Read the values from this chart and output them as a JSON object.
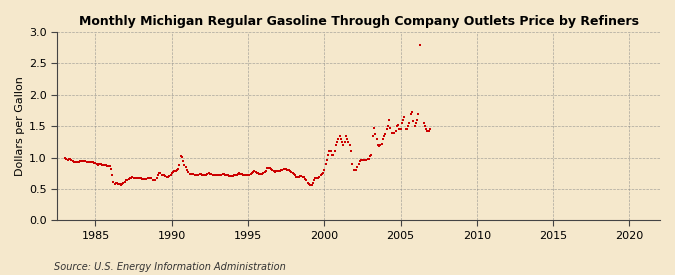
{
  "title": "Monthly Michigan Regular Gasoline Through Company Outlets Price by Refiners",
  "ylabel": "Dollars per Gallon",
  "source": "Source: U.S. Energy Information Administration",
  "background_color": "#f5e8cc",
  "marker_color": "#cc0000",
  "xlim": [
    1982.5,
    2022
  ],
  "ylim": [
    0.0,
    3.0
  ],
  "xticks": [
    1985,
    1990,
    1995,
    2000,
    2005,
    2010,
    2015,
    2020
  ],
  "yticks": [
    0.0,
    0.5,
    1.0,
    1.5,
    2.0,
    2.5,
    3.0
  ],
  "data": [
    [
      1983.0,
      0.995
    ],
    [
      1983.08,
      0.975
    ],
    [
      1983.17,
      0.965
    ],
    [
      1983.25,
      0.97
    ],
    [
      1983.33,
      0.975
    ],
    [
      1983.42,
      0.96
    ],
    [
      1983.5,
      0.945
    ],
    [
      1983.58,
      0.935
    ],
    [
      1983.67,
      0.93
    ],
    [
      1983.75,
      0.925
    ],
    [
      1983.83,
      0.928
    ],
    [
      1983.92,
      0.932
    ],
    [
      1984.0,
      0.942
    ],
    [
      1984.08,
      0.942
    ],
    [
      1984.17,
      0.942
    ],
    [
      1984.25,
      0.938
    ],
    [
      1984.33,
      0.938
    ],
    [
      1984.42,
      0.932
    ],
    [
      1984.5,
      0.928
    ],
    [
      1984.58,
      0.928
    ],
    [
      1984.67,
      0.922
    ],
    [
      1984.75,
      0.922
    ],
    [
      1984.83,
      0.922
    ],
    [
      1984.92,
      0.918
    ],
    [
      1985.0,
      0.908
    ],
    [
      1985.08,
      0.892
    ],
    [
      1985.17,
      0.888
    ],
    [
      1985.25,
      0.892
    ],
    [
      1985.33,
      0.892
    ],
    [
      1985.42,
      0.888
    ],
    [
      1985.5,
      0.878
    ],
    [
      1985.58,
      0.882
    ],
    [
      1985.67,
      0.878
    ],
    [
      1985.75,
      0.872
    ],
    [
      1985.83,
      0.868
    ],
    [
      1985.92,
      0.868
    ],
    [
      1986.0,
      0.818
    ],
    [
      1986.08,
      0.718
    ],
    [
      1986.17,
      0.618
    ],
    [
      1986.25,
      0.578
    ],
    [
      1986.33,
      0.598
    ],
    [
      1986.42,
      0.598
    ],
    [
      1986.5,
      0.578
    ],
    [
      1986.58,
      0.578
    ],
    [
      1986.67,
      0.568
    ],
    [
      1986.75,
      0.578
    ],
    [
      1986.83,
      0.598
    ],
    [
      1986.92,
      0.618
    ],
    [
      1987.0,
      0.648
    ],
    [
      1987.08,
      0.648
    ],
    [
      1987.17,
      0.658
    ],
    [
      1987.25,
      0.668
    ],
    [
      1987.33,
      0.668
    ],
    [
      1987.42,
      0.688
    ],
    [
      1987.5,
      0.678
    ],
    [
      1987.58,
      0.678
    ],
    [
      1987.67,
      0.678
    ],
    [
      1987.75,
      0.668
    ],
    [
      1987.83,
      0.678
    ],
    [
      1987.92,
      0.678
    ],
    [
      1988.0,
      0.668
    ],
    [
      1988.08,
      0.658
    ],
    [
      1988.17,
      0.658
    ],
    [
      1988.25,
      0.658
    ],
    [
      1988.33,
      0.658
    ],
    [
      1988.42,
      0.668
    ],
    [
      1988.5,
      0.668
    ],
    [
      1988.58,
      0.668
    ],
    [
      1988.67,
      0.668
    ],
    [
      1988.75,
      0.648
    ],
    [
      1988.83,
      0.638
    ],
    [
      1988.92,
      0.638
    ],
    [
      1989.0,
      0.678
    ],
    [
      1989.08,
      0.718
    ],
    [
      1989.17,
      0.748
    ],
    [
      1989.25,
      0.748
    ],
    [
      1989.33,
      0.718
    ],
    [
      1989.42,
      0.728
    ],
    [
      1989.5,
      0.718
    ],
    [
      1989.58,
      0.708
    ],
    [
      1989.67,
      0.698
    ],
    [
      1989.75,
      0.698
    ],
    [
      1989.83,
      0.708
    ],
    [
      1989.92,
      0.718
    ],
    [
      1990.0,
      0.748
    ],
    [
      1990.08,
      0.768
    ],
    [
      1990.17,
      0.778
    ],
    [
      1990.25,
      0.788
    ],
    [
      1990.33,
      0.798
    ],
    [
      1990.42,
      0.818
    ],
    [
      1990.5,
      0.878
    ],
    [
      1990.58,
      1.028
    ],
    [
      1990.67,
      1.008
    ],
    [
      1990.75,
      0.948
    ],
    [
      1990.83,
      0.888
    ],
    [
      1990.92,
      0.848
    ],
    [
      1991.0,
      0.798
    ],
    [
      1991.08,
      0.768
    ],
    [
      1991.17,
      0.738
    ],
    [
      1991.25,
      0.738
    ],
    [
      1991.33,
      0.738
    ],
    [
      1991.42,
      0.738
    ],
    [
      1991.5,
      0.728
    ],
    [
      1991.58,
      0.728
    ],
    [
      1991.67,
      0.728
    ],
    [
      1991.75,
      0.728
    ],
    [
      1991.83,
      0.738
    ],
    [
      1991.92,
      0.738
    ],
    [
      1992.0,
      0.728
    ],
    [
      1992.08,
      0.718
    ],
    [
      1992.17,
      0.718
    ],
    [
      1992.25,
      0.728
    ],
    [
      1992.33,
      0.738
    ],
    [
      1992.42,
      0.748
    ],
    [
      1992.5,
      0.738
    ],
    [
      1992.58,
      0.738
    ],
    [
      1992.67,
      0.728
    ],
    [
      1992.75,
      0.718
    ],
    [
      1992.83,
      0.718
    ],
    [
      1992.92,
      0.718
    ],
    [
      1993.0,
      0.718
    ],
    [
      1993.08,
      0.718
    ],
    [
      1993.17,
      0.728
    ],
    [
      1993.25,
      0.728
    ],
    [
      1993.33,
      0.738
    ],
    [
      1993.42,
      0.738
    ],
    [
      1993.5,
      0.728
    ],
    [
      1993.58,
      0.728
    ],
    [
      1993.67,
      0.718
    ],
    [
      1993.75,
      0.708
    ],
    [
      1993.83,
      0.708
    ],
    [
      1993.92,
      0.708
    ],
    [
      1994.0,
      0.708
    ],
    [
      1994.08,
      0.718
    ],
    [
      1994.17,
      0.718
    ],
    [
      1994.25,
      0.728
    ],
    [
      1994.33,
      0.738
    ],
    [
      1994.42,
      0.748
    ],
    [
      1994.5,
      0.738
    ],
    [
      1994.58,
      0.738
    ],
    [
      1994.67,
      0.728
    ],
    [
      1994.75,
      0.728
    ],
    [
      1994.83,
      0.728
    ],
    [
      1994.92,
      0.728
    ],
    [
      1995.0,
      0.728
    ],
    [
      1995.08,
      0.728
    ],
    [
      1995.17,
      0.738
    ],
    [
      1995.25,
      0.758
    ],
    [
      1995.33,
      0.768
    ],
    [
      1995.42,
      0.778
    ],
    [
      1995.5,
      0.768
    ],
    [
      1995.58,
      0.758
    ],
    [
      1995.67,
      0.748
    ],
    [
      1995.75,
      0.738
    ],
    [
      1995.83,
      0.738
    ],
    [
      1995.92,
      0.738
    ],
    [
      1996.0,
      0.758
    ],
    [
      1996.08,
      0.768
    ],
    [
      1996.17,
      0.788
    ],
    [
      1996.25,
      0.828
    ],
    [
      1996.33,
      0.838
    ],
    [
      1996.42,
      0.828
    ],
    [
      1996.5,
      0.818
    ],
    [
      1996.58,
      0.798
    ],
    [
      1996.67,
      0.778
    ],
    [
      1996.75,
      0.768
    ],
    [
      1996.83,
      0.778
    ],
    [
      1996.92,
      0.788
    ],
    [
      1997.0,
      0.788
    ],
    [
      1997.08,
      0.788
    ],
    [
      1997.17,
      0.798
    ],
    [
      1997.25,
      0.808
    ],
    [
      1997.33,
      0.818
    ],
    [
      1997.42,
      0.818
    ],
    [
      1997.5,
      0.818
    ],
    [
      1997.58,
      0.808
    ],
    [
      1997.67,
      0.798
    ],
    [
      1997.75,
      0.778
    ],
    [
      1997.83,
      0.768
    ],
    [
      1997.92,
      0.758
    ],
    [
      1998.0,
      0.738
    ],
    [
      1998.08,
      0.718
    ],
    [
      1998.17,
      0.698
    ],
    [
      1998.25,
      0.698
    ],
    [
      1998.33,
      0.698
    ],
    [
      1998.42,
      0.708
    ],
    [
      1998.5,
      0.708
    ],
    [
      1998.58,
      0.698
    ],
    [
      1998.67,
      0.688
    ],
    [
      1998.75,
      0.658
    ],
    [
      1998.83,
      0.638
    ],
    [
      1998.92,
      0.598
    ],
    [
      1999.0,
      0.578
    ],
    [
      1999.08,
      0.568
    ],
    [
      1999.17,
      0.558
    ],
    [
      1999.25,
      0.598
    ],
    [
      1999.33,
      0.638
    ],
    [
      1999.42,
      0.668
    ],
    [
      1999.5,
      0.678
    ],
    [
      1999.58,
      0.678
    ],
    [
      1999.67,
      0.698
    ],
    [
      1999.75,
      0.728
    ],
    [
      1999.83,
      0.738
    ],
    [
      1999.92,
      0.748
    ],
    [
      2000.0,
      0.798
    ],
    [
      2000.08,
      0.898
    ],
    [
      2000.17,
      0.968
    ],
    [
      2000.25,
      1.048
    ],
    [
      2000.33,
      1.098
    ],
    [
      2000.42,
      1.098
    ],
    [
      2000.5,
      1.048
    ],
    [
      2000.58,
      1.048
    ],
    [
      2000.67,
      1.098
    ],
    [
      2000.75,
      1.198
    ],
    [
      2000.83,
      1.248
    ],
    [
      2000.92,
      1.298
    ],
    [
      2001.0,
      1.348
    ],
    [
      2001.08,
      1.298
    ],
    [
      2001.17,
      1.248
    ],
    [
      2001.25,
      1.198
    ],
    [
      2001.33,
      1.248
    ],
    [
      2001.42,
      1.348
    ],
    [
      2001.5,
      1.298
    ],
    [
      2001.58,
      1.248
    ],
    [
      2001.67,
      1.198
    ],
    [
      2001.75,
      1.098
    ],
    [
      2001.83,
      0.898
    ],
    [
      2001.92,
      0.798
    ],
    [
      2002.0,
      0.798
    ],
    [
      2002.08,
      0.798
    ],
    [
      2002.17,
      0.848
    ],
    [
      2002.25,
      0.898
    ],
    [
      2002.33,
      0.948
    ],
    [
      2002.42,
      0.968
    ],
    [
      2002.5,
      0.968
    ],
    [
      2002.58,
      0.968
    ],
    [
      2002.67,
      0.968
    ],
    [
      2002.75,
      0.968
    ],
    [
      2002.83,
      0.978
    ],
    [
      2002.92,
      0.978
    ],
    [
      2003.0,
      1.018
    ],
    [
      2003.08,
      1.048
    ],
    [
      2003.17,
      1.348
    ],
    [
      2003.25,
      1.478
    ],
    [
      2003.33,
      1.378
    ],
    [
      2003.42,
      1.298
    ],
    [
      2003.5,
      1.198
    ],
    [
      2003.58,
      1.178
    ],
    [
      2003.67,
      1.198
    ],
    [
      2003.75,
      1.218
    ],
    [
      2003.83,
      1.298
    ],
    [
      2003.92,
      1.348
    ],
    [
      2004.0,
      1.378
    ],
    [
      2004.08,
      1.448
    ],
    [
      2004.17,
      1.498
    ],
    [
      2004.25,
      1.598
    ],
    [
      2004.33,
      1.478
    ],
    [
      2004.42,
      1.398
    ],
    [
      2004.5,
      1.398
    ],
    [
      2004.58,
      1.398
    ],
    [
      2004.67,
      1.428
    ],
    [
      2004.75,
      1.498
    ],
    [
      2004.83,
      1.518
    ],
    [
      2004.92,
      1.448
    ],
    [
      2005.0,
      1.448
    ],
    [
      2005.08,
      1.548
    ],
    [
      2005.17,
      1.598
    ],
    [
      2005.25,
      1.648
    ],
    [
      2005.33,
      1.448
    ],
    [
      2005.42,
      1.448
    ],
    [
      2005.5,
      1.498
    ],
    [
      2005.58,
      1.548
    ],
    [
      2005.67,
      1.698
    ],
    [
      2005.75,
      1.718
    ],
    [
      2005.83,
      1.578
    ],
    [
      2005.92,
      1.498
    ],
    [
      2006.0,
      1.548
    ],
    [
      2006.08,
      1.598
    ],
    [
      2006.17,
      1.698
    ],
    [
      2006.25,
      2.798
    ],
    [
      2006.5,
      1.548
    ],
    [
      2006.58,
      1.498
    ],
    [
      2006.67,
      1.448
    ],
    [
      2006.75,
      1.418
    ],
    [
      2006.83,
      1.428
    ],
    [
      2006.92,
      1.448
    ]
  ]
}
